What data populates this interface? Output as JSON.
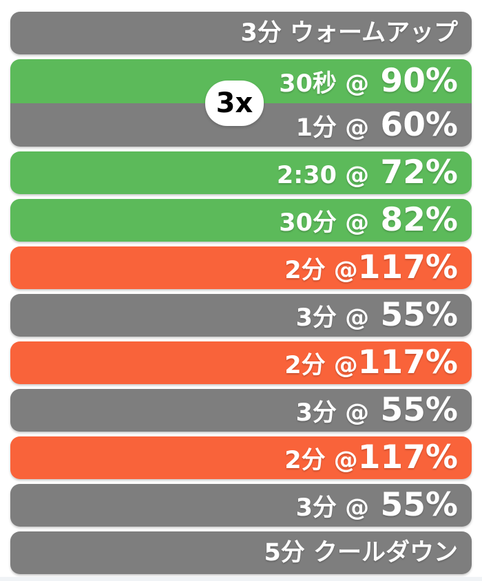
{
  "colors": {
    "green": "#5CBA5A",
    "orange": "#F9633A",
    "gray": "#7E7E7E",
    "bar_text": "#FFFFFF",
    "badge_background": "#FFFFFF",
    "badge_text": "#000000",
    "page_background": "#FFFFFF",
    "bottom_strip": "#F0F3F6"
  },
  "workout": {
    "warmup": {
      "label": "3分 ウォームアップ",
      "zone": "gray"
    },
    "repeat": {
      "count_label": "3x",
      "work": {
        "duration": "30秒 @",
        "percent": " 90%",
        "zone": "green"
      },
      "rest": {
        "duration": "1分 @",
        "percent": " 60%",
        "zone": "gray"
      }
    },
    "intervals": [
      {
        "duration": "2:30 @",
        "percent": " 72%",
        "zone": "green"
      },
      {
        "duration": "30分 @",
        "percent": " 82%",
        "zone": "green"
      },
      {
        "duration": "2分 @",
        "percent": "117%",
        "zone": "orange"
      },
      {
        "duration": "3分 @",
        "percent": " 55%",
        "zone": "gray"
      },
      {
        "duration": "2分 @",
        "percent": "117%",
        "zone": "orange"
      },
      {
        "duration": "3分 @",
        "percent": " 55%",
        "zone": "gray"
      },
      {
        "duration": "2分 @",
        "percent": "117%",
        "zone": "orange"
      },
      {
        "duration": "3分 @",
        "percent": " 55%",
        "zone": "gray"
      }
    ],
    "cooldown": {
      "label": "5分 クールダウン",
      "zone": "gray"
    }
  }
}
